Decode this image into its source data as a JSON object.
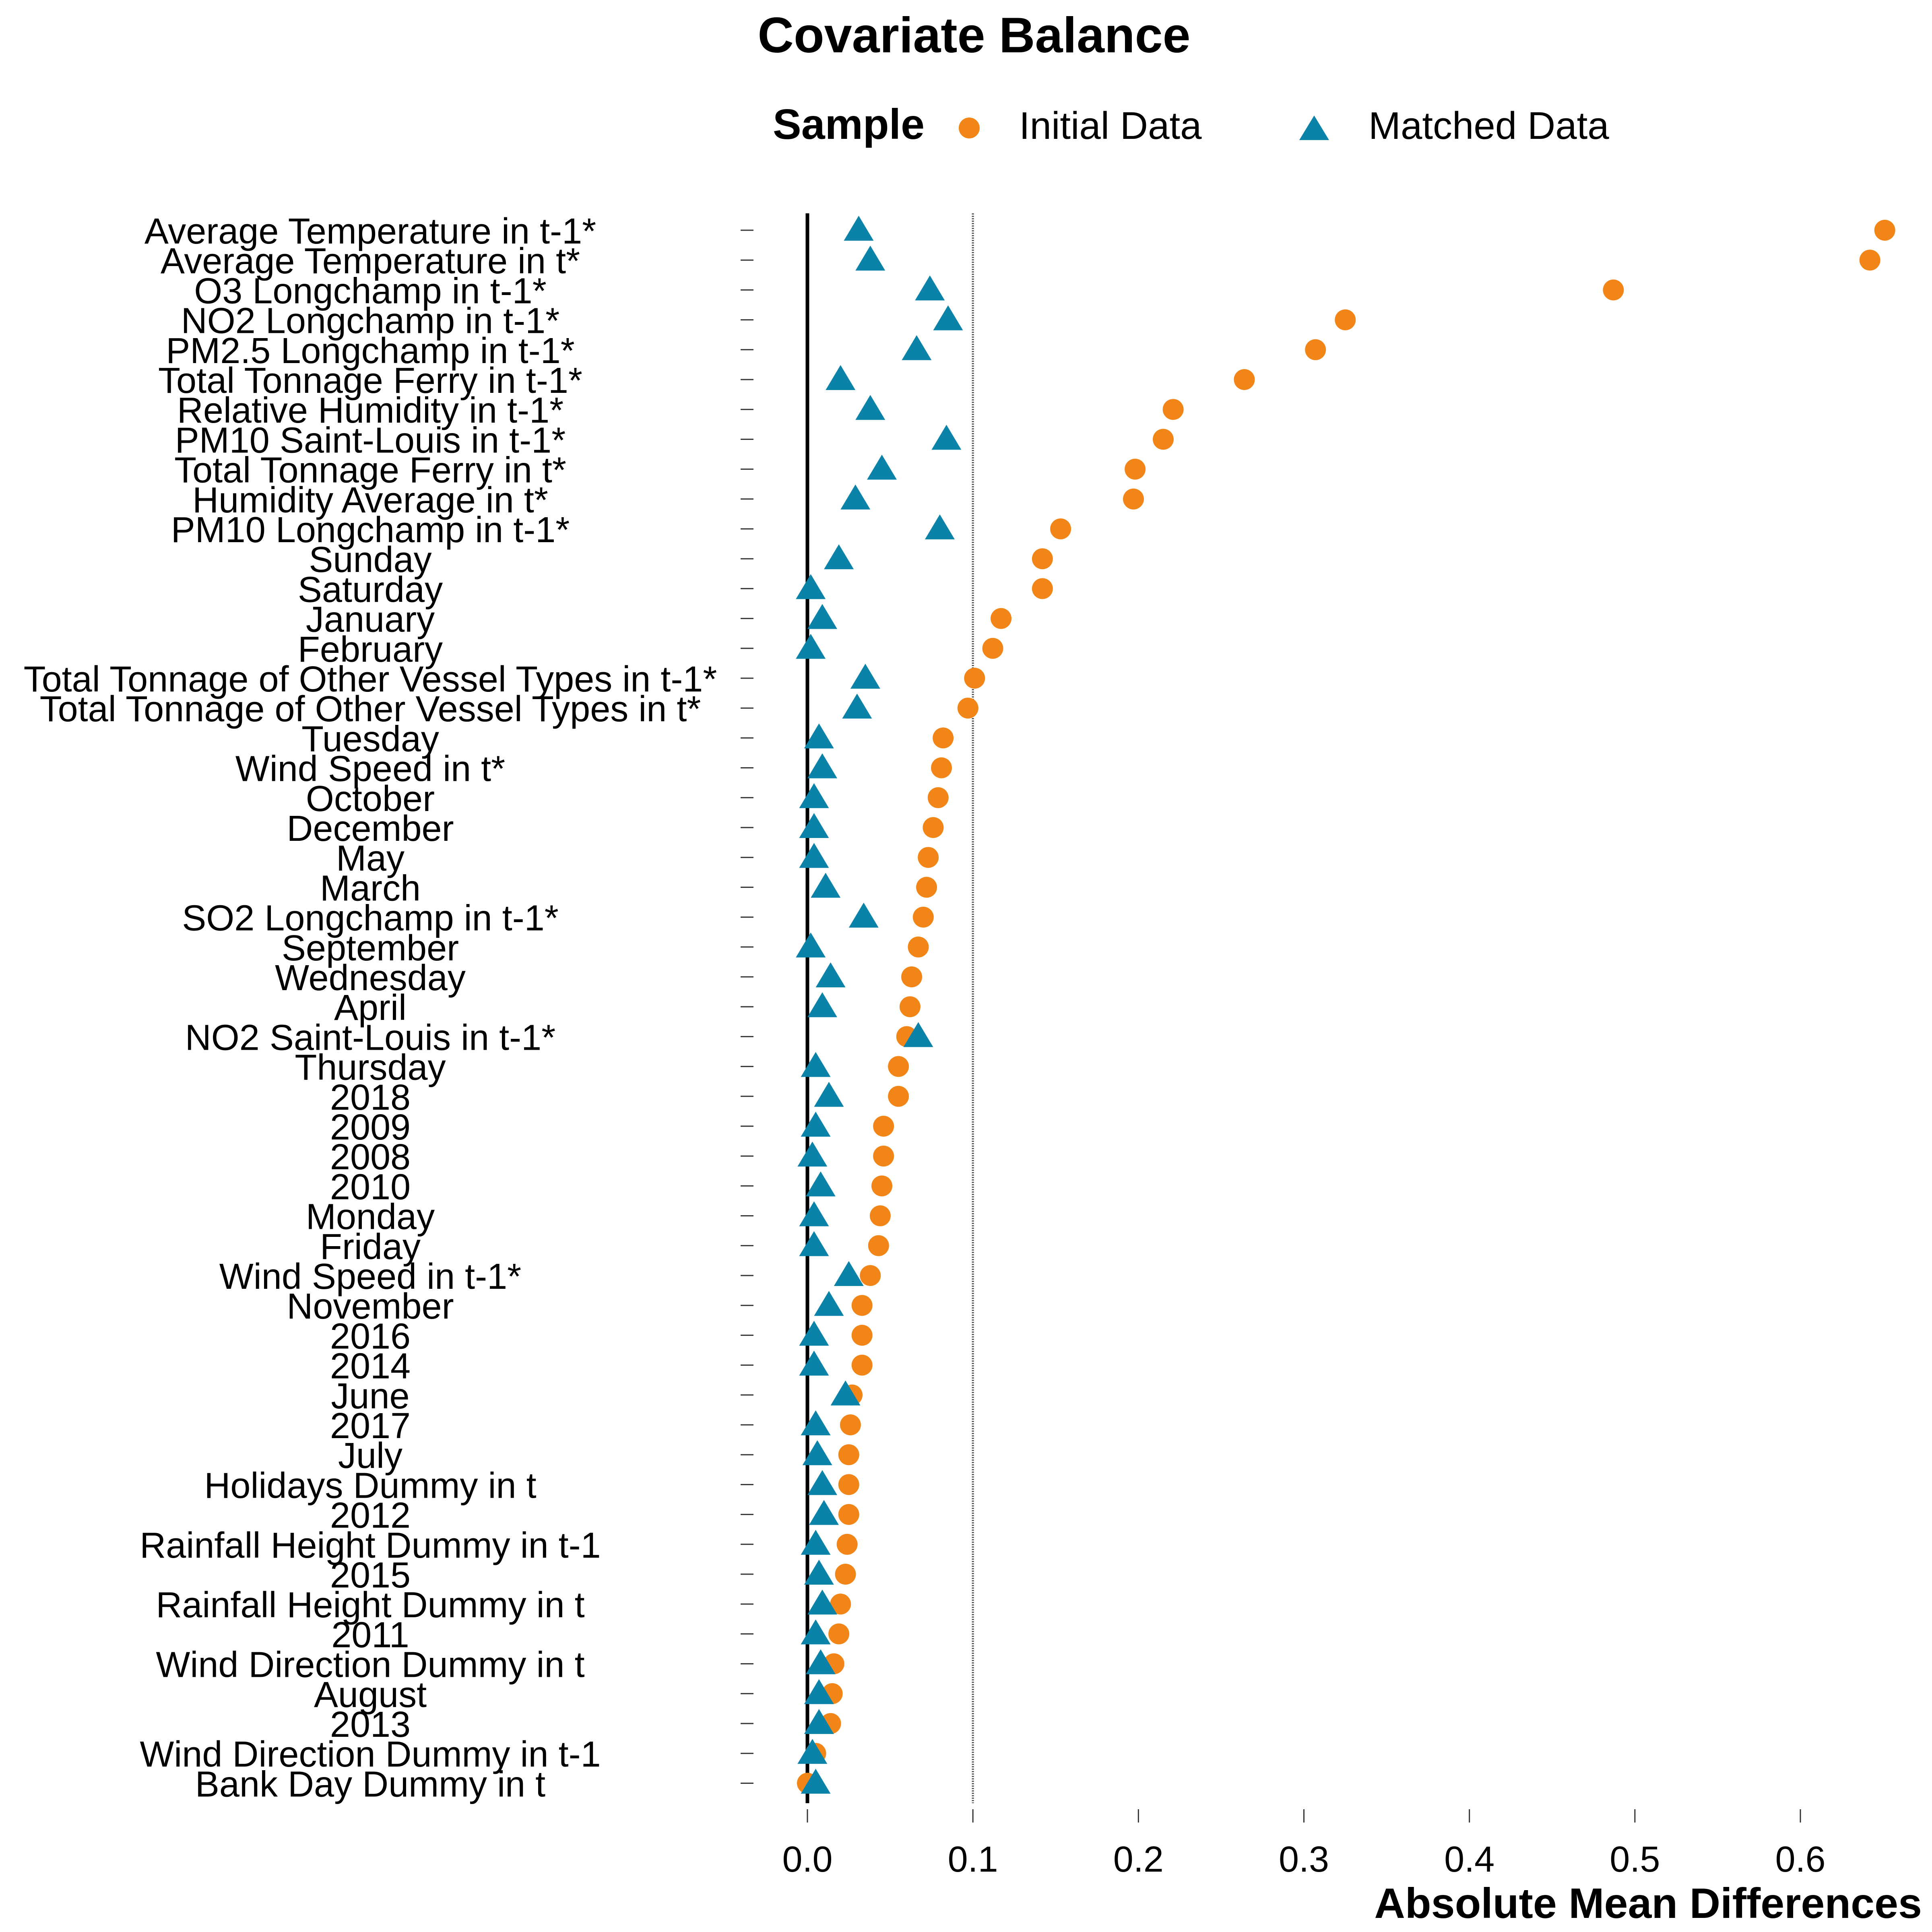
{
  "chart_data": {
    "type": "scatter",
    "title": "Covariate Balance",
    "xlabel": "Absolute Mean Differences",
    "ylabel": "",
    "xlim": [
      -0.04,
      0.66
    ],
    "xticks": [
      "0.0",
      "0.1",
      "0.2",
      "0.3",
      "0.4",
      "0.5",
      "0.6"
    ],
    "threshold": 0.1,
    "zero_line": 0,
    "legend": {
      "title": "Sample",
      "position": "top"
    },
    "grid": false,
    "categories": [
      "Average Temperature in t-1*",
      "Average Temperature in t*",
      "O3 Longchamp in t-1*",
      "NO2 Longchamp in t-1*",
      "PM2.5 Longchamp in t-1*",
      "Total Tonnage Ferry in t-1*",
      "Relative Humidity in t-1*",
      "PM10 Saint-Louis in t-1*",
      "Total Tonnage Ferry in t*",
      "Humidity Average in t*",
      "PM10 Longchamp in t-1*",
      "Sunday",
      "Saturday",
      "January",
      "February",
      "Total Tonnage of Other Vessel Types in t-1*",
      "Total Tonnage of Other Vessel Types in t*",
      "Tuesday",
      "Wind Speed in t*",
      "October",
      "December",
      "May",
      "March",
      "SO2 Longchamp in t-1*",
      "September",
      "Wednesday",
      "April",
      "NO2 Saint-Louis in t-1*",
      "Thursday",
      "2018",
      "2009",
      "2008",
      "2010",
      "Monday",
      "Friday",
      "Wind Speed in t-1*",
      "November",
      "2016",
      "2014",
      "June",
      "2017",
      "July",
      "Holidays Dummy in t",
      "2012",
      "Rainfall Height Dummy in t-1",
      "2015",
      "Rainfall Height Dummy in t",
      "2011",
      "Wind Direction Dummy in t",
      "August",
      "2013",
      "Wind Direction Dummy in t-1",
      "Bank Day Dummy in t"
    ],
    "series": [
      {
        "name": "Initial Data",
        "marker": "circle",
        "color": "#f28518",
        "values": [
          0.651,
          0.642,
          0.487,
          0.325,
          0.307,
          0.264,
          0.221,
          0.215,
          0.198,
          0.197,
          0.153,
          0.142,
          0.142,
          0.117,
          0.112,
          0.101,
          0.097,
          0.082,
          0.081,
          0.079,
          0.076,
          0.073,
          0.072,
          0.07,
          0.067,
          0.063,
          0.062,
          0.06,
          0.055,
          0.055,
          0.046,
          0.046,
          0.045,
          0.044,
          0.043,
          0.038,
          0.033,
          0.033,
          0.033,
          0.027,
          0.026,
          0.025,
          0.025,
          0.025,
          0.024,
          0.023,
          0.02,
          0.019,
          0.016,
          0.015,
          0.014,
          0.005,
          0.0
        ]
      },
      {
        "name": "Matched Data",
        "marker": "triangle",
        "color": "#0b82a8",
        "values": [
          0.031,
          0.038,
          0.074,
          0.085,
          0.066,
          0.02,
          0.038,
          0.084,
          0.045,
          0.029,
          0.08,
          0.019,
          0.002,
          0.009,
          0.002,
          0.035,
          0.03,
          0.007,
          0.009,
          0.004,
          0.004,
          0.004,
          0.011,
          0.034,
          0.002,
          0.014,
          0.009,
          0.067,
          0.005,
          0.013,
          0.005,
          0.003,
          0.008,
          0.004,
          0.004,
          0.025,
          0.013,
          0.004,
          0.004,
          0.023,
          0.005,
          0.006,
          0.009,
          0.01,
          0.005,
          0.007,
          0.009,
          0.005,
          0.008,
          0.007,
          0.007,
          0.003,
          0.005
        ]
      }
    ]
  }
}
